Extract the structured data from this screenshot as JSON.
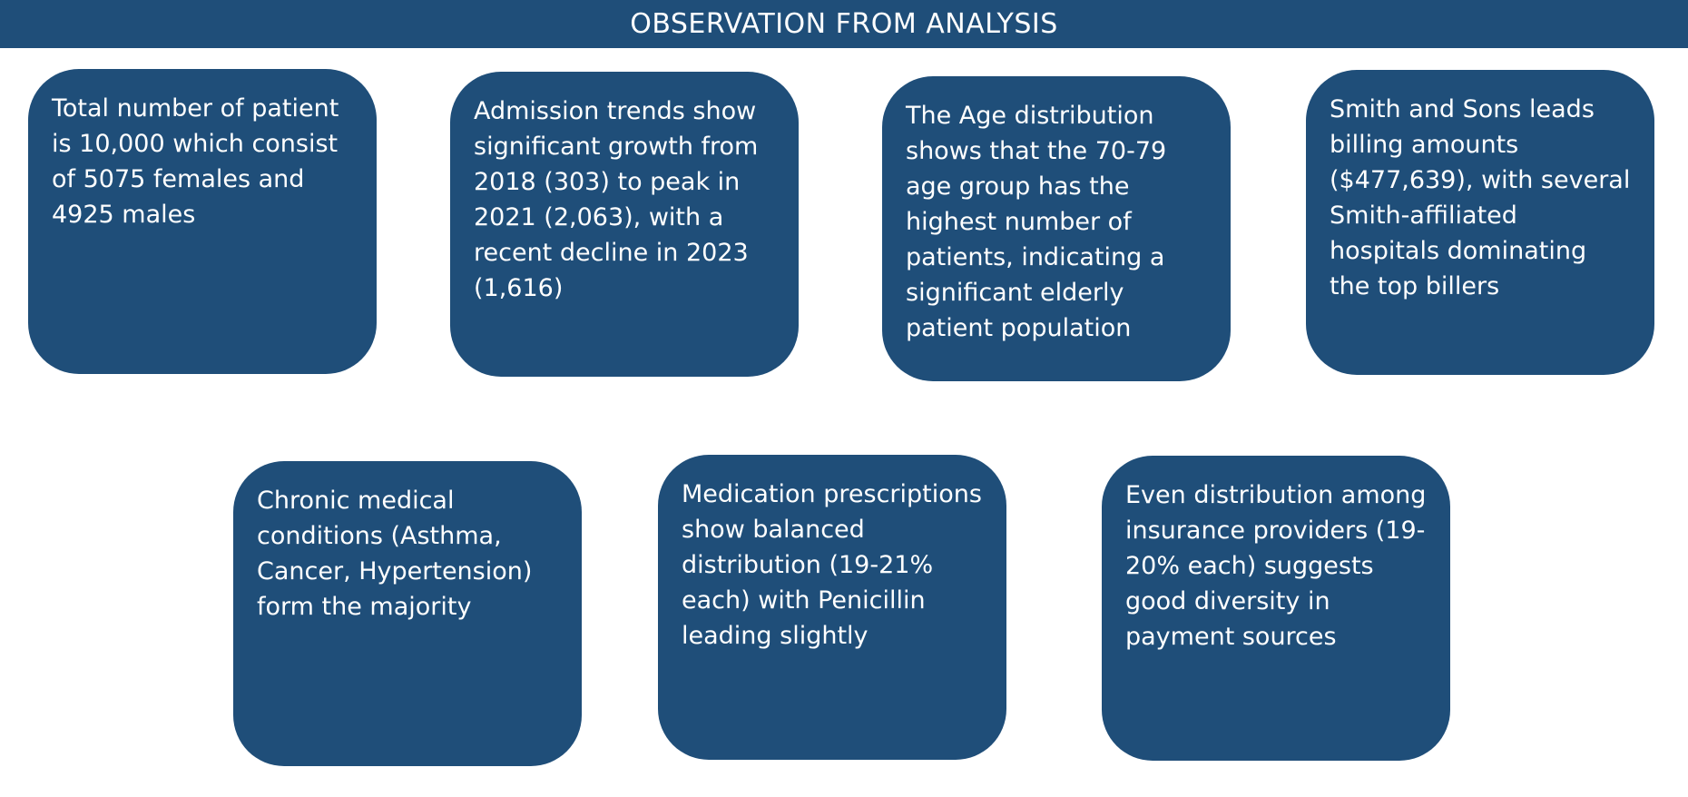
{
  "header": {
    "title": "OBSERVATION FROM ANALYSIS"
  },
  "colors": {
    "accent": "#1f4e79",
    "text": "#ffffff",
    "background": "#ffffff"
  },
  "cards": [
    {
      "text": "Total number of patient is 10,000 which consist of 5075 females and 4925 males"
    },
    {
      "text": "Admission trends show significant growth from 2018 (303) to peak in 2021 (2,063), with a recent decline in 2023 (1,616)"
    },
    {
      "text": "The Age distribution shows that the 70-79 age group has the highest number of patients, indicating a significant elderly patient population"
    },
    {
      "text": "Smith and Sons leads billing amounts ($477,639), with several Smith-affiliated hospitals dominating the top billers"
    },
    {
      "text": "Chronic medical conditions (Asthma, Cancer, Hypertension) form the majority"
    },
    {
      "text": "Medication prescriptions show balanced distribution (19-21% each) with Penicillin leading slightly"
    },
    {
      "text": "Even distribution among insurance providers (19-20% each) suggests good diversity in payment sources"
    }
  ]
}
